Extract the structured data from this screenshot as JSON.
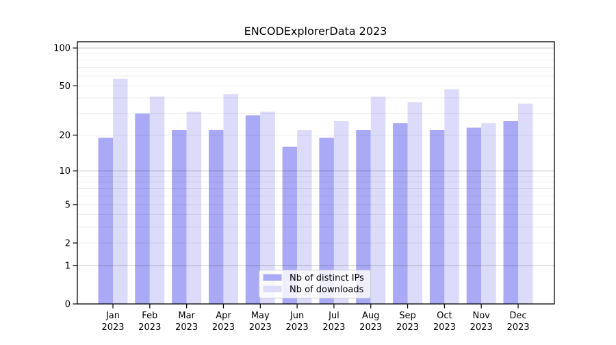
{
  "figure": {
    "title": "ENCODExplorerData 2023"
  },
  "legend": {
    "position": "lower center",
    "items": [
      {
        "label": "Nb of distinct IPs",
        "color": "#a9a9f5"
      },
      {
        "label": "Nb of downloads",
        "color": "#dcdcfa"
      }
    ]
  },
  "chart_data": {
    "type": "bar",
    "title": "ENCODExplorerData 2023",
    "scale": "symlog",
    "categories": [
      "Jan",
      "Feb",
      "Mar",
      "Apr",
      "May",
      "Jun",
      "Jul",
      "Aug",
      "Sep",
      "Oct",
      "Nov",
      "Dec"
    ],
    "year_label": "2023",
    "series": [
      {
        "name": "Nb of distinct IPs",
        "color": "#a9a9f5",
        "values": [
          19,
          30,
          22,
          22,
          29,
          16,
          19,
          22,
          25,
          22,
          23,
          26
        ]
      },
      {
        "name": "Nb of downloads",
        "color": "#dcdcfa",
        "values": [
          57,
          41,
          31,
          43,
          31,
          22,
          26,
          41,
          37,
          47,
          25,
          36
        ]
      }
    ],
    "yticks": [
      0,
      1,
      2,
      5,
      10,
      20,
      50,
      100
    ],
    "ytick_labels": [
      "0",
      "1",
      "2",
      "5",
      "10",
      "20",
      "50",
      "100"
    ],
    "major_gridlines": [
      1,
      10,
      100
    ],
    "minor_gridlines": [
      2,
      3,
      4,
      5,
      6,
      7,
      8,
      9,
      20,
      30,
      40,
      50,
      60,
      70,
      80,
      90
    ],
    "ylim": [
      0,
      112
    ],
    "xlabel": "",
    "ylabel": "",
    "grid": "both",
    "legend_position": "lower center"
  }
}
